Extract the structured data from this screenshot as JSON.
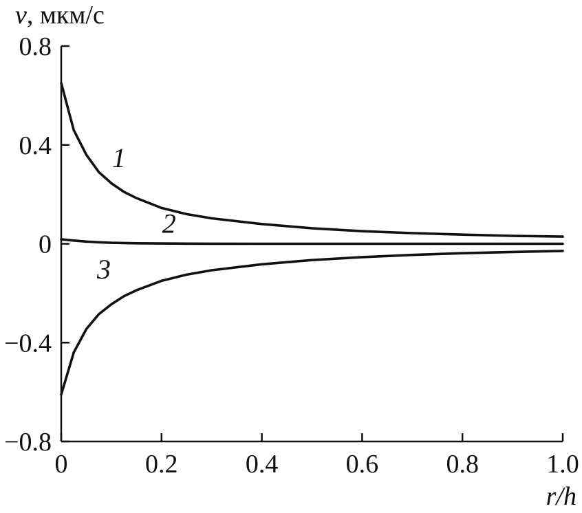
{
  "chart_data": {
    "type": "line",
    "ylabel": {
      "var": "v",
      "unit": ", мкм/с"
    },
    "xlabel": "r/h",
    "xlim": [
      0,
      1.0
    ],
    "ylim": [
      -0.8,
      0.8
    ],
    "x_ticks": [
      "0",
      "0.2",
      "0.4",
      "0.6",
      "0.8",
      "1.0"
    ],
    "x_tick_values": [
      0,
      0.2,
      0.4,
      0.6,
      0.8,
      1.0
    ],
    "y_ticks": [
      "0.8",
      "0.4",
      "0",
      "−0.4",
      "−0.8"
    ],
    "y_tick_values": [
      0.8,
      0.4,
      0,
      -0.4,
      -0.8
    ],
    "grid": false,
    "legend": "none",
    "x": [
      0,
      0.025,
      0.05,
      0.075,
      0.1,
      0.125,
      0.15,
      0.2,
      0.25,
      0.3,
      0.4,
      0.5,
      0.6,
      0.7,
      0.8,
      0.9,
      1.0
    ],
    "series": [
      {
        "name": "1",
        "values": [
          0.65,
          0.46,
          0.36,
          0.29,
          0.245,
          0.21,
          0.185,
          0.145,
          0.12,
          0.103,
          0.08,
          0.063,
          0.051,
          0.043,
          0.037,
          0.032,
          0.029
        ]
      },
      {
        "name": "2",
        "values": [
          0.018,
          0.013,
          0.009,
          0.006,
          0.004,
          0.003,
          0.002,
          0.001,
          0.0005,
          0.0003,
          0.0001,
          0,
          0,
          0,
          0,
          0,
          0
        ]
      },
      {
        "name": "3",
        "values": [
          -0.61,
          -0.44,
          -0.345,
          -0.285,
          -0.245,
          -0.212,
          -0.188,
          -0.15,
          -0.125,
          -0.107,
          -0.083,
          -0.066,
          -0.054,
          -0.045,
          -0.038,
          -0.033,
          -0.029
        ]
      }
    ]
  }
}
